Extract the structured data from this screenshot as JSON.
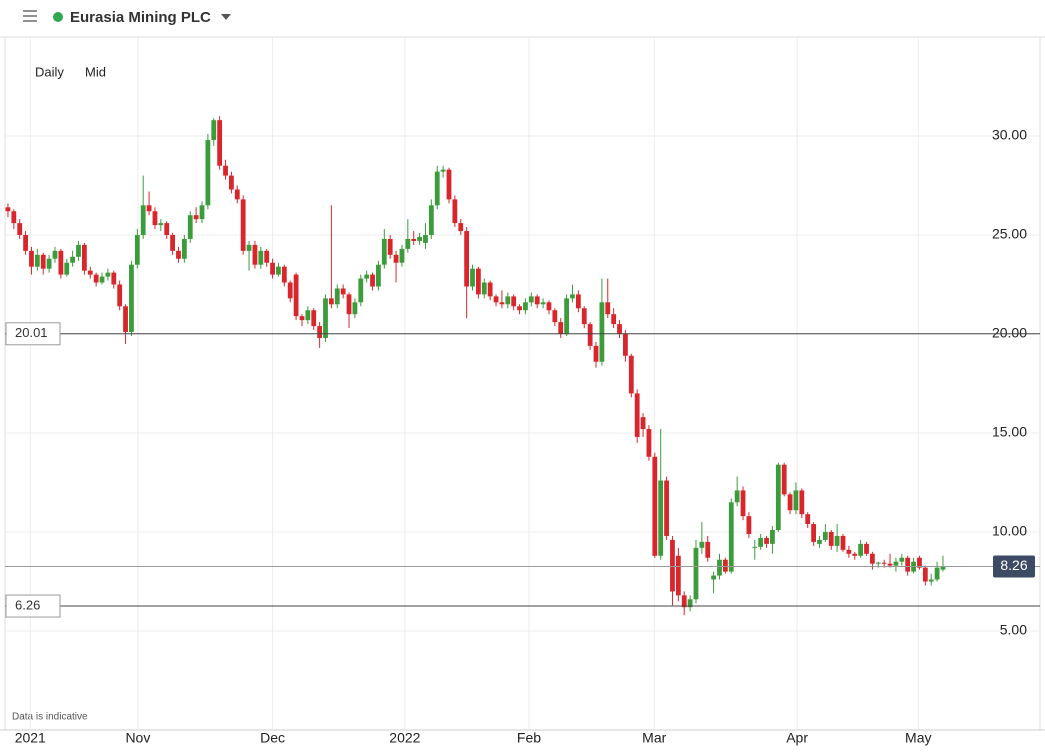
{
  "toolbar": {
    "interval": "Daily",
    "price": "Mid"
  },
  "footnote": "Data is indicative",
  "chart_data": {
    "type": "candlestick",
    "title": "Eurasia Mining PLC",
    "up_color": "#3c9c3c",
    "down_color": "#d9262c",
    "grid": true,
    "ylim": [
      0,
      35
    ],
    "yticks": [
      {
        "value": 5,
        "label": "5.00"
      },
      {
        "value": 10,
        "label": "10.00"
      },
      {
        "value": 15,
        "label": "15.00"
      },
      {
        "value": 20,
        "label": "20.00"
      },
      {
        "value": 25,
        "label": "25.00"
      },
      {
        "value": 30,
        "label": "30.00"
      }
    ],
    "xlim": [
      0,
      176
    ],
    "xticks": [
      {
        "value": 4.3,
        "label": "2021"
      },
      {
        "value": 22.6,
        "label": "Nov"
      },
      {
        "value": 45.5,
        "label": "Dec"
      },
      {
        "value": 68,
        "label": "2022"
      },
      {
        "value": 89.1,
        "label": "Feb"
      },
      {
        "value": 110.4,
        "label": "Mar"
      },
      {
        "value": 134.7,
        "label": "Apr"
      },
      {
        "value": 155.3,
        "label": "May"
      }
    ],
    "lines": [
      20.01,
      6.26
    ],
    "last_price": 8.26,
    "candles": [
      [
        26.4,
        26.6,
        25.9,
        26.2
      ],
      [
        26.2,
        26.3,
        25.3,
        25.6
      ],
      [
        25.6,
        25.8,
        24.8,
        25.0
      ],
      [
        25.0,
        25.2,
        24.0,
        24.2
      ],
      [
        24.2,
        24.4,
        23.0,
        23.4
      ],
      [
        23.4,
        24.3,
        23.2,
        24.0
      ],
      [
        24.0,
        24.1,
        23.0,
        23.3
      ],
      [
        23.3,
        24.0,
        23.1,
        23.8
      ],
      [
        23.8,
        24.4,
        23.6,
        24.2
      ],
      [
        24.2,
        24.3,
        22.8,
        23.0
      ],
      [
        23.0,
        23.8,
        22.9,
        23.6
      ],
      [
        23.6,
        24.2,
        23.4,
        23.9
      ],
      [
        23.9,
        24.7,
        23.7,
        24.5
      ],
      [
        24.5,
        24.6,
        23.0,
        23.2
      ],
      [
        23.2,
        23.4,
        22.8,
        23.0
      ],
      [
        23.0,
        23.1,
        22.4,
        22.6
      ],
      [
        22.6,
        23.1,
        22.5,
        22.9
      ],
      [
        22.9,
        23.3,
        22.7,
        23.1
      ],
      [
        23.1,
        23.2,
        22.3,
        22.5
      ],
      [
        22.5,
        22.7,
        21.2,
        21.4
      ],
      [
        21.4,
        21.5,
        19.5,
        20.1
      ],
      [
        20.1,
        23.7,
        19.9,
        23.5
      ],
      [
        23.5,
        25.3,
        23.3,
        25.0
      ],
      [
        25.0,
        28.0,
        24.8,
        26.5
      ],
      [
        26.5,
        27.2,
        26.0,
        26.2
      ],
      [
        26.2,
        26.4,
        25.3,
        25.5
      ],
      [
        25.5,
        25.8,
        25.2,
        25.6
      ],
      [
        25.6,
        25.7,
        24.8,
        25.0
      ],
      [
        25.0,
        25.1,
        24.0,
        24.2
      ],
      [
        24.2,
        24.4,
        23.6,
        23.8
      ],
      [
        23.8,
        25.0,
        23.6,
        24.8
      ],
      [
        24.8,
        26.2,
        24.6,
        26.0
      ],
      [
        26.0,
        26.4,
        25.6,
        25.8
      ],
      [
        25.8,
        26.7,
        25.6,
        26.5
      ],
      [
        26.5,
        30.1,
        26.3,
        29.8
      ],
      [
        29.8,
        30.9,
        29.5,
        30.8
      ],
      [
        30.8,
        31.0,
        28.3,
        28.5
      ],
      [
        28.5,
        28.8,
        27.8,
        28.0
      ],
      [
        28.0,
        28.2,
        27.1,
        27.3
      ],
      [
        27.3,
        27.5,
        26.6,
        26.8
      ],
      [
        26.8,
        27.0,
        24.0,
        24.2
      ],
      [
        24.2,
        24.7,
        23.2,
        24.5
      ],
      [
        24.5,
        24.7,
        23.3,
        23.5
      ],
      [
        23.5,
        24.4,
        23.3,
        24.2
      ],
      [
        24.2,
        24.3,
        23.4,
        23.6
      ],
      [
        23.6,
        23.8,
        22.8,
        23.0
      ],
      [
        23.0,
        23.6,
        22.9,
        23.4
      ],
      [
        23.4,
        23.5,
        22.4,
        22.6
      ],
      [
        22.6,
        22.7,
        21.6,
        21.8
      ],
      [
        23.0,
        23.1,
        20.7,
        20.9
      ],
      [
        20.9,
        21.0,
        20.4,
        20.7
      ],
      [
        20.7,
        21.4,
        20.5,
        21.2
      ],
      [
        21.2,
        21.3,
        20.2,
        20.4
      ],
      [
        20.4,
        20.6,
        19.3,
        19.8
      ],
      [
        19.8,
        22.0,
        19.6,
        21.8
      ],
      [
        21.8,
        26.5,
        21.3,
        21.5
      ],
      [
        21.5,
        22.5,
        21.3,
        22.3
      ],
      [
        22.3,
        22.5,
        21.8,
        22.0
      ],
      [
        22.0,
        22.1,
        20.3,
        21.0
      ],
      [
        21.0,
        21.8,
        20.8,
        21.6
      ],
      [
        21.6,
        23.0,
        21.4,
        22.8
      ],
      [
        22.8,
        23.2,
        22.6,
        23.0
      ],
      [
        23.0,
        23.1,
        22.2,
        22.4
      ],
      [
        22.4,
        23.7,
        22.2,
        23.5
      ],
      [
        23.5,
        25.3,
        23.3,
        24.8
      ],
      [
        24.8,
        25.0,
        23.8,
        24.0
      ],
      [
        24.0,
        24.2,
        22.6,
        23.6
      ],
      [
        23.6,
        24.5,
        23.4,
        24.3
      ],
      [
        24.3,
        25.8,
        24.1,
        24.8
      ],
      [
        24.8,
        25.2,
        24.5,
        24.7
      ],
      [
        24.7,
        25.1,
        24.5,
        24.9
      ],
      [
        24.6,
        25.6,
        24.3,
        25.0
      ],
      [
        25.0,
        26.8,
        24.8,
        26.5
      ],
      [
        26.5,
        28.5,
        26.3,
        28.2
      ],
      [
        28.2,
        28.5,
        27.9,
        28.3
      ],
      [
        28.3,
        28.4,
        26.6,
        26.8
      ],
      [
        26.8,
        27.0,
        25.4,
        25.6
      ],
      [
        25.6,
        25.8,
        25.0,
        25.2
      ],
      [
        25.2,
        25.4,
        20.8,
        22.4
      ],
      [
        22.4,
        23.5,
        22.2,
        23.3
      ],
      [
        23.3,
        23.4,
        21.8,
        22.0
      ],
      [
        22.0,
        22.8,
        21.8,
        22.6
      ],
      [
        22.6,
        22.7,
        21.7,
        21.9
      ],
      [
        21.9,
        22.0,
        21.4,
        21.6
      ],
      [
        21.6,
        22.2,
        21.3,
        21.5
      ],
      [
        21.5,
        22.1,
        21.3,
        21.9
      ],
      [
        21.9,
        22.0,
        21.2,
        21.4
      ],
      [
        21.4,
        21.5,
        21.0,
        21.2
      ],
      [
        21.2,
        21.8,
        21.0,
        21.6
      ],
      [
        21.6,
        22.1,
        21.4,
        21.9
      ],
      [
        21.9,
        22.0,
        21.3,
        21.5
      ],
      [
        21.5,
        21.8,
        21.3,
        21.6
      ],
      [
        21.6,
        21.7,
        21.0,
        21.2
      ],
      [
        21.2,
        21.3,
        20.4,
        20.6
      ],
      [
        20.6,
        20.8,
        19.8,
        20.0
      ],
      [
        20.0,
        22.0,
        19.9,
        21.8
      ],
      [
        21.8,
        22.5,
        21.6,
        22.0
      ],
      [
        22.0,
        22.2,
        21.1,
        21.3
      ],
      [
        21.3,
        21.4,
        20.3,
        20.5
      ],
      [
        20.5,
        20.6,
        19.2,
        19.4
      ],
      [
        19.4,
        19.6,
        18.3,
        18.6
      ],
      [
        18.6,
        22.8,
        18.4,
        21.6
      ],
      [
        21.6,
        22.8,
        20.8,
        21.0
      ],
      [
        21.0,
        21.3,
        20.3,
        20.5
      ],
      [
        20.5,
        20.7,
        19.8,
        20.0
      ],
      [
        20.0,
        20.2,
        18.6,
        18.9
      ],
      [
        18.9,
        19.0,
        16.8,
        17.0
      ],
      [
        17.0,
        17.2,
        14.5,
        14.8
      ],
      [
        15.8,
        16.0,
        14.8,
        15.2
      ],
      [
        15.2,
        15.4,
        13.6,
        13.8
      ],
      [
        13.8,
        14.0,
        8.7,
        8.8
      ],
      [
        8.8,
        15.2,
        8.6,
        12.6
      ],
      [
        12.6,
        12.8,
        9.6,
        9.8
      ],
      [
        9.6,
        9.8,
        6.3,
        7.0
      ],
      [
        8.8,
        9.2,
        6.5,
        6.8
      ],
      [
        6.8,
        7.0,
        5.8,
        6.2
      ],
      [
        6.2,
        6.8,
        6.0,
        6.6
      ],
      [
        6.6,
        9.6,
        6.4,
        9.2
      ],
      [
        9.2,
        10.5,
        8.9,
        9.5
      ],
      [
        9.5,
        9.8,
        8.5,
        8.7
      ],
      [
        7.6,
        8.0,
        6.9,
        7.8
      ],
      [
        7.8,
        8.9,
        7.6,
        8.6
      ],
      [
        8.6,
        8.7,
        7.9,
        8.0
      ],
      [
        8.0,
        11.7,
        7.9,
        11.5
      ],
      [
        11.5,
        12.8,
        11.3,
        12.1
      ],
      [
        12.1,
        12.3,
        10.6,
        10.8
      ],
      [
        10.8,
        11.0,
        9.7,
        9.9
      ],
      [
        9.2,
        9.6,
        8.6,
        9.25
      ],
      [
        9.25,
        9.9,
        9.1,
        9.7
      ],
      [
        9.7,
        9.8,
        9.2,
        9.4
      ],
      [
        9.4,
        10.3,
        8.9,
        10.1
      ],
      [
        10.1,
        13.5,
        10.0,
        13.4
      ],
      [
        13.4,
        13.5,
        11.8,
        11.9
      ],
      [
        11.9,
        12.0,
        10.9,
        11.1
      ],
      [
        11.1,
        12.5,
        10.9,
        12.1
      ],
      [
        12.1,
        12.2,
        10.7,
        10.9
      ],
      [
        10.9,
        11.0,
        10.2,
        10.4
      ],
      [
        10.4,
        10.5,
        9.3,
        9.5
      ],
      [
        9.4,
        9.8,
        9.2,
        9.6
      ],
      [
        9.6,
        10.4,
        9.5,
        10.0
      ],
      [
        10.0,
        10.1,
        9.1,
        9.3
      ],
      [
        9.3,
        10.4,
        9.0,
        9.8
      ],
      [
        9.8,
        9.9,
        9.0,
        9.1
      ],
      [
        9.1,
        9.3,
        8.7,
        8.9
      ],
      [
        8.9,
        9.0,
        8.6,
        8.8
      ],
      [
        8.8,
        9.6,
        8.7,
        9.4
      ],
      [
        9.4,
        9.5,
        8.8,
        8.9
      ],
      [
        8.9,
        9.0,
        8.1,
        8.4
      ],
      [
        8.4,
        8.5,
        8.2,
        8.45
      ],
      [
        8.45,
        8.6,
        8.2,
        8.4
      ],
      [
        8.4,
        8.9,
        8.2,
        8.3
      ],
      [
        8.3,
        8.7,
        8.0,
        8.5
      ],
      [
        8.5,
        8.9,
        8.3,
        8.7
      ],
      [
        8.7,
        8.8,
        7.8,
        8.0
      ],
      [
        8.0,
        8.7,
        7.9,
        8.5
      ],
      [
        8.7,
        8.8,
        8.1,
        8.2
      ],
      [
        8.2,
        8.3,
        7.3,
        7.5
      ],
      [
        7.5,
        7.9,
        7.3,
        7.6
      ],
      [
        7.6,
        8.5,
        7.5,
        8.2
      ],
      [
        8.1,
        8.8,
        8.0,
        8.26
      ]
    ]
  }
}
